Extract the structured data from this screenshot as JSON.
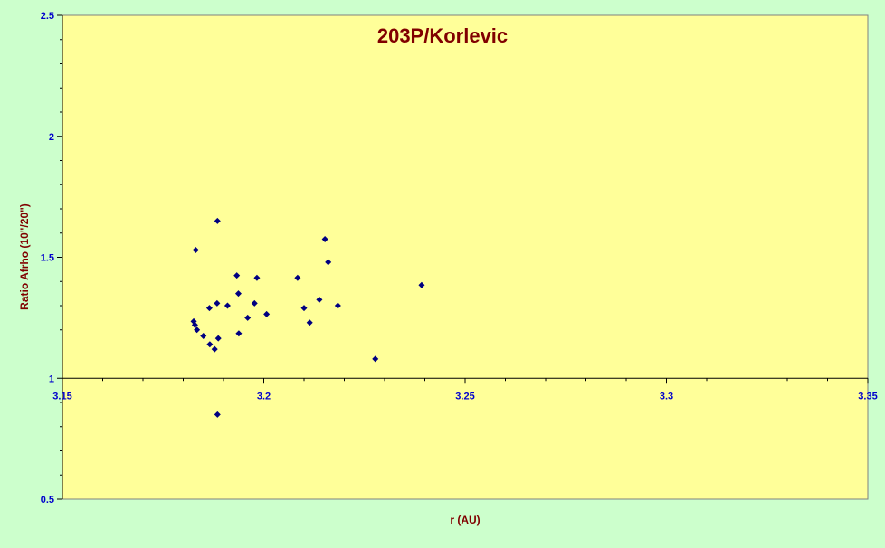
{
  "chart_data": {
    "type": "scatter",
    "title": "203P/Korlevic",
    "xlabel": "r (AU)",
    "ylabel": "Ratio Afrho (10\"/20\")",
    "xlim": [
      3.15,
      3.35
    ],
    "ylim": [
      0.5,
      2.5
    ],
    "x_ticks": [
      "3.15",
      "3.2",
      "3.25",
      "3.3",
      "3.35"
    ],
    "y_ticks": [
      "0.5",
      "1",
      "1.5",
      "2",
      "2.5"
    ],
    "x_tick_values": [
      3.15,
      3.2,
      3.25,
      3.3,
      3.35
    ],
    "y_tick_values": [
      0.5,
      1,
      1.5,
      2,
      2.5
    ],
    "x_axis_crosses_at": 1,
    "grid": false,
    "colors": {
      "background": "#ccffcc",
      "plot_area": "#ffff99",
      "marker": "#000080",
      "title": "#800000",
      "ticks": "#0000cc"
    },
    "series": [
      {
        "marker": "diamond",
        "points": [
          {
            "x": 3.1831,
            "y": 1.53
          },
          {
            "x": 3.1826,
            "y": 1.235
          },
          {
            "x": 3.1829,
            "y": 1.22
          },
          {
            "x": 3.1834,
            "y": 1.2
          },
          {
            "x": 3.185,
            "y": 1.175
          },
          {
            "x": 3.1865,
            "y": 1.29
          },
          {
            "x": 3.1866,
            "y": 1.14
          },
          {
            "x": 3.1878,
            "y": 1.12
          },
          {
            "x": 3.1884,
            "y": 1.31
          },
          {
            "x": 3.1887,
            "y": 1.165
          },
          {
            "x": 3.1885,
            "y": 1.65
          },
          {
            "x": 3.1885,
            "y": 0.85
          },
          {
            "x": 3.191,
            "y": 1.3
          },
          {
            "x": 3.1933,
            "y": 1.425
          },
          {
            "x": 3.1937,
            "y": 1.35
          },
          {
            "x": 3.1938,
            "y": 1.185
          },
          {
            "x": 3.196,
            "y": 1.25
          },
          {
            "x": 3.1977,
            "y": 1.31
          },
          {
            "x": 3.1983,
            "y": 1.415
          },
          {
            "x": 3.2007,
            "y": 1.265
          },
          {
            "x": 3.2084,
            "y": 1.415
          },
          {
            "x": 3.21,
            "y": 1.29
          },
          {
            "x": 3.2114,
            "y": 1.23
          },
          {
            "x": 3.2138,
            "y": 1.325
          },
          {
            "x": 3.2152,
            "y": 1.575
          },
          {
            "x": 3.216,
            "y": 1.48
          },
          {
            "x": 3.2184,
            "y": 1.3
          },
          {
            "x": 3.2277,
            "y": 1.08
          },
          {
            "x": 3.2392,
            "y": 1.385
          }
        ]
      }
    ]
  }
}
